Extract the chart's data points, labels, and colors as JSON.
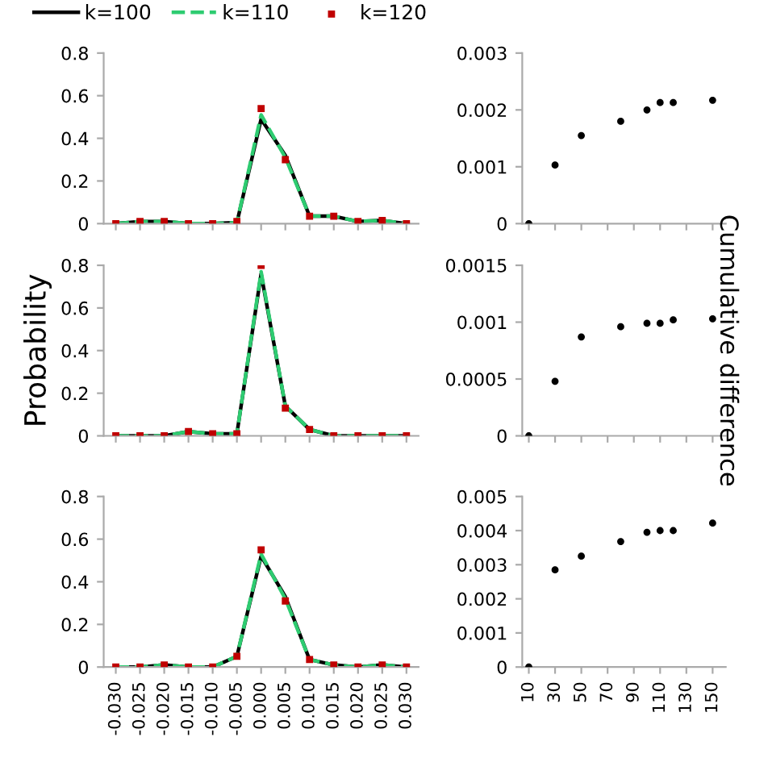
{
  "chart_data": [
    {
      "type": "line",
      "legend": "top",
      "tick_labels": "y",
      "grid": false,
      "categories": [
        "-0.030",
        "-0.025",
        "-0.020",
        "-0.015",
        "-0.010",
        "-0.005",
        "0.000",
        "0.005",
        "0.010",
        "0.015",
        "0.020",
        "0.025",
        "0.030"
      ],
      "ylim": [
        0,
        0.8
      ],
      "yticks": [
        0,
        0.2,
        0.4,
        0.6,
        0.8
      ],
      "series": [
        {
          "name": "k=100",
          "color": "#000000",
          "line_style": "solid",
          "marker": "none",
          "values": [
            0,
            0.01,
            0.01,
            0,
            0,
            0.005,
            0.49,
            0.32,
            0.035,
            0.035,
            0.01,
            0.015,
            0
          ]
        },
        {
          "name": "k=110",
          "color": "#2ecc71",
          "line_style": "dashed",
          "marker": "none",
          "values": [
            0,
            0.01,
            0.01,
            0,
            0,
            0.005,
            0.51,
            0.31,
            0.035,
            0.035,
            0.01,
            0.015,
            0
          ]
        },
        {
          "name": "k=120",
          "color": "#c00000",
          "type": "scatter",
          "marker": "square",
          "values": [
            0,
            0.01,
            0.01,
            0,
            0,
            0.01,
            0.54,
            0.3,
            0.035,
            0.035,
            0.01,
            0.015,
            0
          ]
        }
      ]
    },
    {
      "type": "scatter",
      "tick_labels": "y",
      "grid": false,
      "marker": "circle",
      "x": [
        10,
        30,
        50,
        80,
        100,
        110,
        120,
        150
      ],
      "xlim": [
        5,
        160
      ],
      "xticks": [
        10,
        30,
        50,
        70,
        90,
        110,
        130,
        150
      ],
      "ylim": [
        0,
        0.003
      ],
      "yticks": [
        0,
        0.001,
        0.002,
        0.003
      ],
      "series": [
        {
          "color": "#000000",
          "values": [
            0,
            0.00103,
            0.00155,
            0.0018,
            0.002,
            0.00213,
            0.00213,
            0.00217
          ]
        }
      ]
    },
    {
      "type": "line",
      "tick_labels": "y",
      "grid": false,
      "ylabel": "Probability",
      "categories": [
        "-0.030",
        "-0.025",
        "-0.020",
        "-0.015",
        "-0.010",
        "-0.005",
        "0.000",
        "0.005",
        "0.010",
        "0.015",
        "0.020",
        "0.025",
        "0.030"
      ],
      "ylim": [
        0,
        0.8
      ],
      "yticks": [
        0,
        0.2,
        0.4,
        0.6,
        0.8
      ],
      "series": [
        {
          "color": "#000000",
          "line_style": "solid",
          "marker": "none",
          "values": [
            0,
            0,
            0,
            0.02,
            0.01,
            0.01,
            0.76,
            0.14,
            0.03,
            0,
            0,
            0,
            0
          ]
        },
        {
          "color": "#2ecc71",
          "line_style": "dashed",
          "marker": "none",
          "values": [
            0,
            0,
            0,
            0.02,
            0.01,
            0.01,
            0.77,
            0.14,
            0.03,
            0,
            0,
            0,
            0
          ]
        },
        {
          "color": "#c00000",
          "type": "scatter",
          "marker": "square",
          "values": [
            0,
            0,
            0,
            0.02,
            0.01,
            0.01,
            0.8,
            0.13,
            0.03,
            0,
            0,
            0,
            0
          ]
        }
      ]
    },
    {
      "type": "scatter",
      "tick_labels": "y",
      "grid": false,
      "marker": "circle",
      "y2label": "Cumulative difference",
      "x": [
        10,
        30,
        50,
        80,
        100,
        110,
        120,
        150
      ],
      "xlim": [
        5,
        160
      ],
      "xticks": [
        10,
        30,
        50,
        70,
        90,
        110,
        130,
        150
      ],
      "ylim": [
        0,
        0.0015
      ],
      "yticks": [
        0,
        0.0005,
        0.001,
        0.0015
      ],
      "series": [
        {
          "color": "#000000",
          "values": [
            0,
            0.00048,
            0.00087,
            0.00096,
            0.00099,
            0.00099,
            0.00102,
            0.00103
          ]
        }
      ]
    },
    {
      "type": "line",
      "grid": false,
      "categories": [
        "-0.030",
        "-0.025",
        "-0.020",
        "-0.015",
        "-0.010",
        "-0.005",
        "0.000",
        "0.005",
        "0.010",
        "0.015",
        "0.020",
        "0.025",
        "0.030"
      ],
      "ylim": [
        0,
        0.8
      ],
      "yticks": [
        0,
        0.2,
        0.4,
        0.6,
        0.8
      ],
      "series": [
        {
          "color": "#000000",
          "line_style": "solid",
          "marker": "none",
          "values": [
            0,
            0,
            0.01,
            0,
            0,
            0.05,
            0.52,
            0.33,
            0.035,
            0.01,
            0,
            0.01,
            0
          ]
        },
        {
          "color": "#2ecc71",
          "line_style": "dashed",
          "marker": "none",
          "values": [
            0,
            0,
            0.01,
            0,
            0,
            0.05,
            0.53,
            0.32,
            0.035,
            0.01,
            0,
            0.01,
            0
          ]
        },
        {
          "color": "#c00000",
          "type": "scatter",
          "marker": "square",
          "values": [
            0,
            0,
            0.01,
            0,
            0,
            0.05,
            0.55,
            0.31,
            0.035,
            0.01,
            0,
            0.01,
            0
          ]
        }
      ]
    },
    {
      "type": "scatter",
      "grid": false,
      "marker": "circle",
      "x": [
        10,
        30,
        50,
        80,
        100,
        110,
        120,
        150
      ],
      "xlim": [
        5,
        160
      ],
      "xticks": [
        10,
        30,
        50,
        70,
        90,
        110,
        130,
        150
      ],
      "ylim": [
        0,
        0.005
      ],
      "yticks": [
        0,
        0.001,
        0.002,
        0.003,
        0.004,
        0.005
      ],
      "series": [
        {
          "color": "#000000",
          "values": [
            0,
            0.00285,
            0.00325,
            0.00368,
            0.00395,
            0.004,
            0.004,
            0.00422
          ]
        }
      ]
    }
  ]
}
